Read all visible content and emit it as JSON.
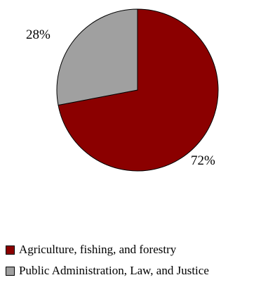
{
  "chart_data": {
    "type": "pie",
    "title": "",
    "slices": [
      {
        "label": "Agriculture, fishing, and forestry",
        "value": 72,
        "value_label": "72%",
        "color": "#8b0000"
      },
      {
        "label": "Public Administration, Law, and Justice",
        "value": 28,
        "value_label": "28%",
        "color": "#a0a0a0"
      }
    ],
    "legend_position": "bottom-left"
  }
}
